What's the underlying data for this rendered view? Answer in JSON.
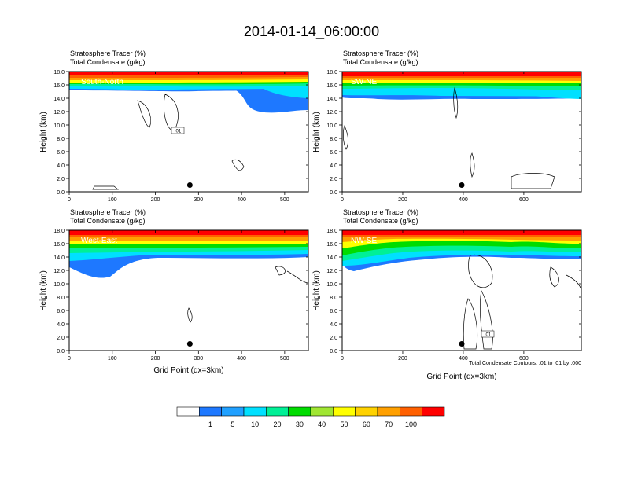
{
  "title": "2014-01-14_06:00:00",
  "field_label": "Stratosphere Tracer   (%)",
  "contour_label": "Total Condensate   (g/kg)",
  "ylabel": "Height (km)",
  "xlabel": "Grid Point (dx=3km)",
  "contour_note": "Total Condensate Contours: .01 to .01 by .000",
  "contour_tag": ".01",
  "colors": [
    "#ffffff",
    "#1e78ff",
    "#20a0ff",
    "#00e0ff",
    "#00f096",
    "#00dc00",
    "#a0e632",
    "#ffff00",
    "#ffd200",
    "#ffa000",
    "#ff6000",
    "#ff0000"
  ],
  "colorbar_labels": [
    "1",
    "5",
    "10",
    "20",
    "30",
    "40",
    "50",
    "60",
    "70",
    "100"
  ],
  "chart_data": [
    {
      "type": "heatmap",
      "name": "South-North",
      "xlim": [
        0,
        555
      ],
      "ylim": [
        0,
        18
      ],
      "xticks": [
        0,
        100,
        200,
        300,
        400,
        500
      ],
      "marker": {
        "x": 280,
        "y": 1.0
      },
      "yticks": [
        "0.0",
        "2.0",
        "4.0",
        "6.0",
        "8.0",
        "10.0",
        "12.0",
        "14.0",
        "16.0",
        "18.0"
      ]
    },
    {
      "type": "heatmap",
      "name": "SW-NE",
      "xlim": [
        0,
        790
      ],
      "ylim": [
        0,
        18
      ],
      "xticks": [
        0,
        200,
        400,
        600
      ],
      "marker": {
        "x": 395,
        "y": 1.0
      },
      "yticks": [
        "0.0",
        "2.0",
        "4.0",
        "6.0",
        "8.0",
        "10.0",
        "12.0",
        "14.0",
        "16.0",
        "18.0"
      ]
    },
    {
      "type": "heatmap",
      "name": "West-East",
      "xlim": [
        0,
        555
      ],
      "ylim": [
        0,
        18
      ],
      "xticks": [
        0,
        100,
        200,
        300,
        400,
        500
      ],
      "marker": {
        "x": 280,
        "y": 1.0
      },
      "yticks": [
        "0.0",
        "2.0",
        "4.0",
        "6.0",
        "8.0",
        "10.0",
        "12.0",
        "14.0",
        "16.0",
        "18.0"
      ]
    },
    {
      "type": "heatmap",
      "name": "NW-SE",
      "xlim": [
        0,
        790
      ],
      "ylim": [
        0,
        18
      ],
      "xticks": [
        0,
        200,
        400,
        600
      ],
      "marker": {
        "x": 395,
        "y": 1.0
      },
      "yticks": [
        "0.0",
        "2.0",
        "4.0",
        "6.0",
        "8.0",
        "10.0",
        "12.0",
        "14.0",
        "16.0",
        "18.0"
      ]
    }
  ]
}
